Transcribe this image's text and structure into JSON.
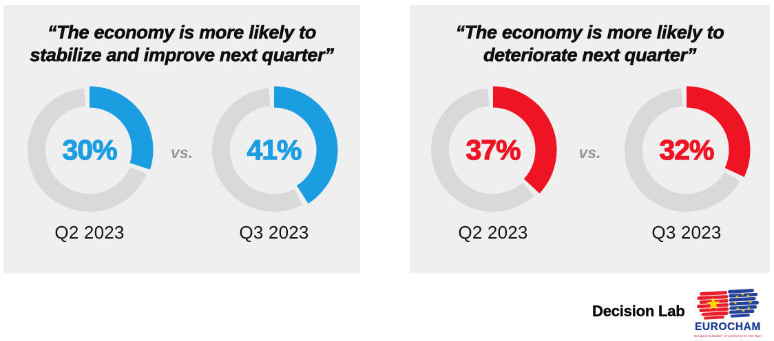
{
  "panels": [
    {
      "title_line1": "“The economy is more likely to",
      "title_line2": "stabilize and improve next quarter”",
      "accent_color": "#1B9DE2",
      "vs_label": "vs.",
      "charts": [
        {
          "value": 30,
          "value_label": "30%",
          "period": "Q2 2023"
        },
        {
          "value": 41,
          "value_label": "41%",
          "period": "Q3 2023"
        }
      ]
    },
    {
      "title_line1": "“The economy is more likely to",
      "title_line2": "deteriorate next quarter”",
      "accent_color": "#EE1423",
      "vs_label": "vs.",
      "charts": [
        {
          "value": 37,
          "value_label": "37%",
          "period": "Q2 2023"
        },
        {
          "value": 32,
          "value_label": "32%",
          "period": "Q3 2023"
        }
      ]
    }
  ],
  "footer": {
    "brand": "Decision Lab",
    "logo": {
      "name": "EUROCHAM",
      "tagline": "European Chamber of Commerce in Viet Nam"
    }
  },
  "colors": {
    "panel_bg": "#EFEFEF",
    "track": "#D9D9D9",
    "blue": "#1B9DE2",
    "red": "#EE1423",
    "vs_gray": "#97979B"
  },
  "chart_data": [
    {
      "type": "pie",
      "subtype": "donut-gauge",
      "title": "“The economy is more likely to stabilize and improve next quarter”",
      "categories": [
        "Q2 2023",
        "Q3 2023"
      ],
      "values": [
        30,
        41
      ],
      "unit": "%",
      "series_color": "#1B9DE2",
      "track_color": "#D9D9D9",
      "value_labels": [
        "30%",
        "41%"
      ],
      "annotation": "vs."
    },
    {
      "type": "pie",
      "subtype": "donut-gauge",
      "title": "“The economy is more likely to deteriorate next quarter”",
      "categories": [
        "Q2 2023",
        "Q3 2023"
      ],
      "values": [
        37,
        32
      ],
      "unit": "%",
      "series_color": "#EE1423",
      "track_color": "#D9D9D9",
      "value_labels": [
        "37%",
        "32%"
      ],
      "annotation": "vs."
    }
  ]
}
